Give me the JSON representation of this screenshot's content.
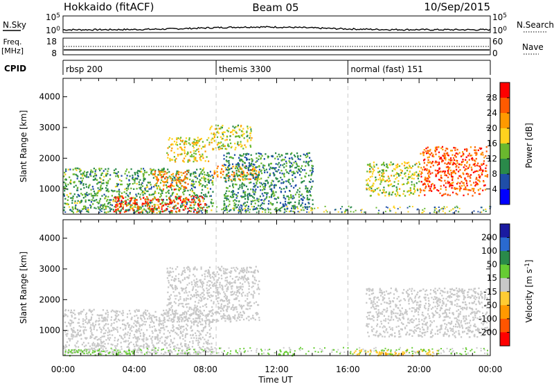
{
  "header": {
    "station": "Hokkaido (fitACF)",
    "beam": "Beam 05",
    "date": "10/Sep/2015"
  },
  "noise_panel": {
    "left_label": "N.Sky",
    "left_ticks": [
      "10^5",
      "10^0"
    ],
    "right_ticks": [
      "10^5",
      "10^0"
    ],
    "right_label": "N.Search"
  },
  "freq_panel": {
    "left_label_line1": "Freq.",
    "left_label_line2": "[MHz]",
    "left_ticks": [
      "18",
      "8"
    ],
    "right_ticks": [
      "60",
      "0"
    ],
    "right_label": "Nave"
  },
  "cpid_panel": {
    "label": "CPID",
    "modes": [
      {
        "name": "rbsp 200",
        "start_hour": 0
      },
      {
        "name": "themis 3300",
        "start_hour": 8.6
      },
      {
        "name": "normal (fast) 151",
        "start_hour": 16.0
      }
    ]
  },
  "time_axis": {
    "label": "Time UT",
    "ticks": [
      "00:00",
      "04:00",
      "08:00",
      "12:00",
      "16:00",
      "20:00",
      "00:00"
    ]
  },
  "range_axis": {
    "label": "Slant Range [km]",
    "ticks": [
      "1000",
      "2000",
      "3000",
      "4000"
    ]
  },
  "chart_data": [
    {
      "type": "heatmap",
      "title": "",
      "parameter": "Power",
      "xlabel": "Time UT",
      "ylabel": "Slant Range [km]",
      "xlim_hours": [
        0,
        24
      ],
      "ylim_km": [
        180,
        4600
      ],
      "colorbar_label": "Power [dB]",
      "colorbar_ticks": [
        "28",
        "24",
        "20",
        "16",
        "12",
        "8",
        "4"
      ],
      "colorbar_colors": [
        "#ff0000",
        "#ff5a00",
        "#ff9a00",
        "#ffd21e",
        "#6ab82e",
        "#2a8a4a",
        "#1f4ea8",
        "#0000ff"
      ],
      "regions": [
        {
          "t": [
            0.0,
            8.4
          ],
          "r": [
            250,
            1700
          ],
          "level": 12
        },
        {
          "t": [
            2.8,
            8.0
          ],
          "r": [
            250,
            800
          ],
          "level": 28
        },
        {
          "t": [
            5.0,
            7.0
          ],
          "r": [
            1000,
            1600
          ],
          "level": 24
        },
        {
          "t": [
            5.8,
            8.2
          ],
          "r": [
            1900,
            2700
          ],
          "level": 18
        },
        {
          "t": [
            8.4,
            11.0
          ],
          "r": [
            1300,
            1800
          ],
          "level": 22
        },
        {
          "t": [
            8.2,
            10.6
          ],
          "r": [
            2300,
            3100
          ],
          "level": 16
        },
        {
          "t": [
            9.0,
            14.0
          ],
          "r": [
            300,
            2200
          ],
          "level": 10
        },
        {
          "t": [
            17.0,
            20.0
          ],
          "r": [
            800,
            1900
          ],
          "level": 16
        },
        {
          "t": [
            20.0,
            23.8
          ],
          "r": [
            800,
            2400
          ],
          "level": 26
        }
      ]
    },
    {
      "type": "heatmap",
      "title": "",
      "parameter": "Velocity",
      "xlabel": "Time UT",
      "ylabel": "Slant Range [km]",
      "xlim_hours": [
        0,
        24
      ],
      "ylim_km": [
        180,
        4600
      ],
      "colorbar_label": "Velocity [m s^-1]",
      "colorbar_ticks": [
        "200",
        "100",
        "50",
        "15",
        "-15",
        "-50",
        "-100",
        "-200"
      ],
      "colorbar_colors": [
        "#1a1aa0",
        "#2a6ad0",
        "#2a8a4a",
        "#66cc33",
        "#c8c8c8",
        "#ffcc33",
        "#ff9900",
        "#ff5500",
        "#ff0000"
      ],
      "regions": [
        {
          "t": [
            0.0,
            8.4
          ],
          "r": [
            250,
            1700
          ],
          "level": 0
        },
        {
          "t": [
            5.8,
            11.0
          ],
          "r": [
            1300,
            3100
          ],
          "level": 0
        },
        {
          "t": [
            0.0,
            4.0
          ],
          "r": [
            200,
            400
          ],
          "level": 30
        },
        {
          "t": [
            12.0,
            13.0
          ],
          "r": [
            200,
            400
          ],
          "level": 30
        },
        {
          "t": [
            16.0,
            21.0
          ],
          "r": [
            200,
            400
          ],
          "level": -40
        },
        {
          "t": [
            17.0,
            23.8
          ],
          "r": [
            800,
            2400
          ],
          "level": 0
        }
      ]
    }
  ]
}
